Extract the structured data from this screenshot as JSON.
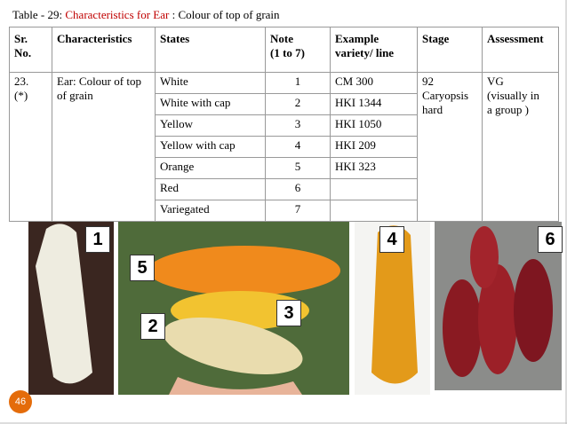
{
  "caption": {
    "prefix": "Table - 29: ",
    "highlight": "Characteristics for Ear",
    "rest": " : Colour of top of grain"
  },
  "table": {
    "headers": {
      "sr_no": [
        "Sr.",
        "No."
      ],
      "characteristics": [
        "Characteristics"
      ],
      "states": [
        "States"
      ],
      "note": [
        "Note",
        "(1 to 7)"
      ],
      "example": [
        "Example",
        "variety/ line"
      ],
      "stage": [
        "Stage"
      ],
      "assessment": [
        "Assessment"
      ]
    },
    "row": {
      "sr_no": [
        "23.",
        "(*)"
      ],
      "characteristics": [
        "Ear: Colour of top",
        "of grain"
      ],
      "stage": [
        "92",
        "Caryopsis",
        "hard"
      ],
      "assessment": [
        "VG",
        "(visually in",
        "a group )"
      ]
    },
    "states": [
      {
        "state": "White",
        "note": 1,
        "example": "CM 300"
      },
      {
        "state": "White with cap",
        "note": 2,
        "example": "HKI 1344"
      },
      {
        "state": "Yellow",
        "note": 3,
        "example": "HKI 1050"
      },
      {
        "state": "Yellow with cap",
        "note": 4,
        "example": "HKI 209"
      },
      {
        "state": "Orange",
        "note": 5,
        "example": "HKI 323"
      },
      {
        "state": "Red",
        "note": 6
      },
      {
        "state": "Variegated",
        "note": 7
      }
    ]
  },
  "photo_labels": [
    "1",
    "5",
    "2",
    "3",
    "4",
    "6"
  ],
  "page_number": "46"
}
